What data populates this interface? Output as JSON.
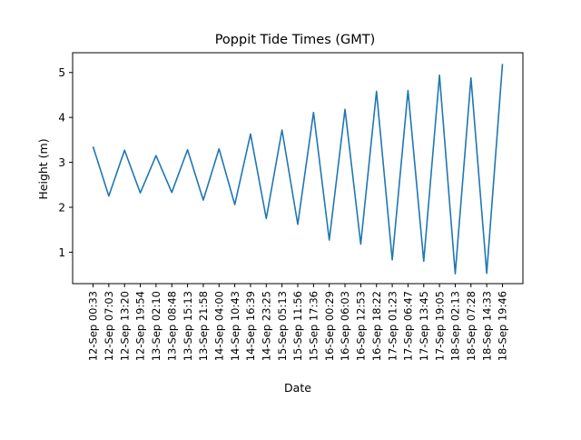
{
  "chart_data": {
    "type": "line",
    "title": "Poppit Tide Times (GMT)",
    "xlabel": "Date",
    "ylabel": "Height (m)",
    "x": [
      "12-Sep 00:33",
      "12-Sep 07:03",
      "12-Sep 13:20",
      "12-Sep 19:54",
      "13-Sep 02:10",
      "13-Sep 08:48",
      "13-Sep 15:13",
      "13-Sep 21:58",
      "14-Sep 04:00",
      "14-Sep 10:43",
      "14-Sep 16:39",
      "14-Sep 23:25",
      "15-Sep 05:13",
      "15-Sep 11:56",
      "15-Sep 17:36",
      "16-Sep 00:29",
      "16-Sep 06:03",
      "16-Sep 12:53",
      "16-Sep 18:22",
      "17-Sep 01:23",
      "17-Sep 06:47",
      "17-Sep 13:45",
      "17-Sep 19:05",
      "18-Sep 02:13",
      "18-Sep 07:28",
      "18-Sep 14:33",
      "18-Sep 19:46"
    ],
    "series": [
      {
        "values": [
          3.35,
          2.25,
          3.27,
          2.32,
          3.15,
          2.33,
          3.28,
          2.16,
          3.3,
          2.06,
          3.63,
          1.75,
          3.72,
          1.62,
          4.11,
          1.27,
          4.18,
          1.18,
          4.58,
          0.83,
          4.6,
          0.8,
          4.94,
          0.52,
          4.88,
          0.53,
          5.19
        ],
        "color": "#1f77b4"
      }
    ],
    "ylim": [
      0.3,
      5.44
    ],
    "yticks": [
      1,
      2,
      3,
      4,
      5
    ],
    "grid": false,
    "legend": "none"
  }
}
